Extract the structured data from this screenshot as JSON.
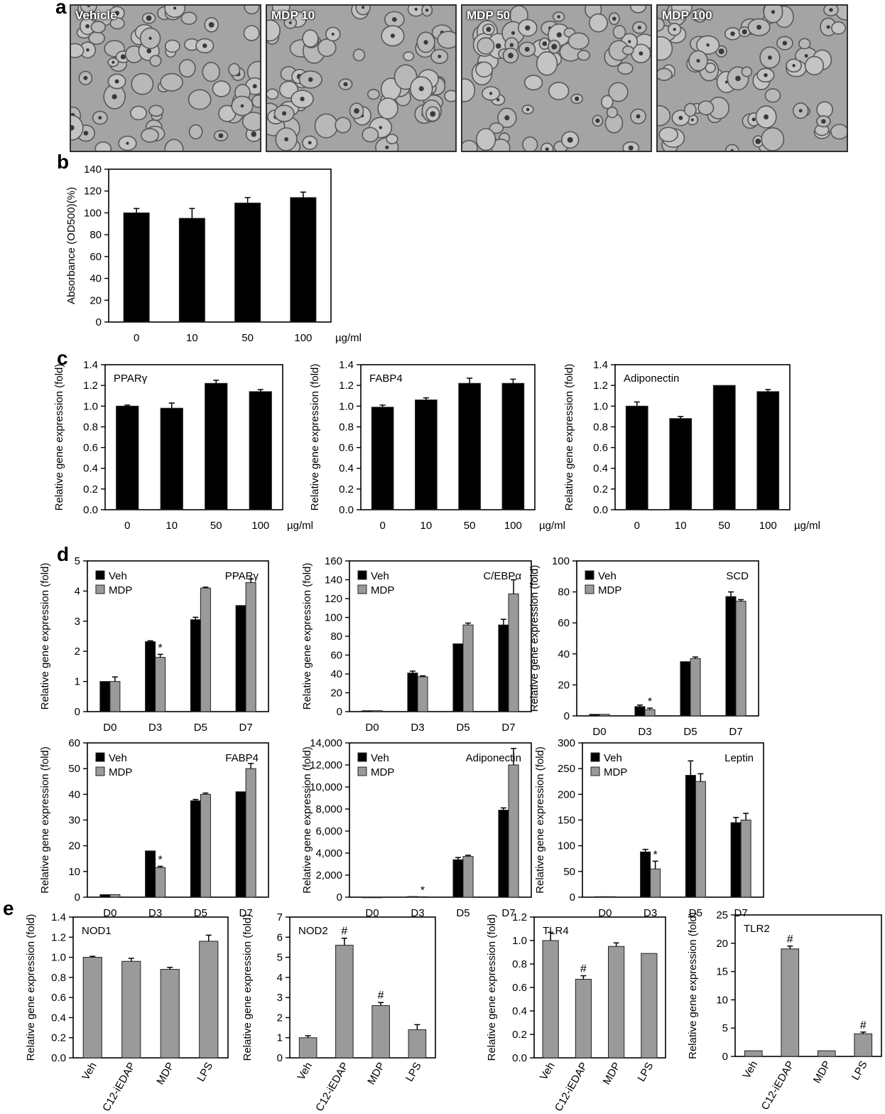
{
  "panels": {
    "a": "a",
    "b": "b",
    "c": "c",
    "d": "d",
    "e": "e"
  },
  "micrographs": [
    {
      "label": "Vehicle"
    },
    {
      "label": "MDP 10"
    },
    {
      "label": "MDP 50"
    },
    {
      "label": "MDP 100"
    }
  ],
  "chart_data": [
    {
      "id": "b",
      "type": "bar",
      "title": "",
      "categories": [
        "0",
        "10",
        "50",
        "100"
      ],
      "unit": "µg/ml",
      "ylabel": "Absorbance (OD500)(%)",
      "ylim": [
        0,
        140
      ],
      "yticks": [
        "0",
        "20",
        "40",
        "60",
        "80",
        "100",
        "120",
        "140"
      ],
      "series": [
        {
          "values": [
            100,
            95,
            109,
            114
          ],
          "errors": [
            4,
            9,
            5,
            5
          ]
        }
      ]
    },
    {
      "id": "c1",
      "type": "bar",
      "title": "PPARγ",
      "categories": [
        "0",
        "10",
        "50",
        "100"
      ],
      "unit": "µg/ml",
      "ylabel": "Relative gene expression (fold)",
      "ylim": [
        0,
        1.4
      ],
      "yticks": [
        "0.0",
        "0.2",
        "0.4",
        "0.6",
        "0.8",
        "1.0",
        "1.2",
        "1.4"
      ],
      "series": [
        {
          "values": [
            1.0,
            0.98,
            1.22,
            1.14
          ],
          "errors": [
            0.01,
            0.05,
            0.03,
            0.02
          ]
        }
      ]
    },
    {
      "id": "c2",
      "type": "bar",
      "title": "FABP4",
      "categories": [
        "0",
        "10",
        "50",
        "100"
      ],
      "unit": "µg/ml",
      "ylabel": "Relative gene expression (fold)",
      "ylim": [
        0,
        1.4
      ],
      "yticks": [
        "0.0",
        "0.2",
        "0.4",
        "0.6",
        "0.8",
        "1.0",
        "1.2",
        "1.4"
      ],
      "series": [
        {
          "values": [
            0.99,
            1.06,
            1.22,
            1.22
          ],
          "errors": [
            0.02,
            0.02,
            0.05,
            0.04
          ]
        }
      ]
    },
    {
      "id": "c3",
      "type": "bar",
      "title": "Adiponectin",
      "categories": [
        "0",
        "10",
        "50",
        "100"
      ],
      "unit": "µg/ml",
      "ylabel": "Relative gene expression (fold)",
      "ylim": [
        0,
        1.4
      ],
      "yticks": [
        "0.0",
        "0.2",
        "0.4",
        "0.6",
        "0.8",
        "1.0",
        "1.2",
        "1.4"
      ],
      "series": [
        {
          "values": [
            1.0,
            0.88,
            1.2,
            1.14
          ],
          "errors": [
            0.04,
            0.02,
            0.0,
            0.02
          ]
        }
      ]
    },
    {
      "id": "d1",
      "type": "bar",
      "title": "PPARγ",
      "categories": [
        "D0",
        "D3",
        "D5",
        "D7"
      ],
      "unit": "",
      "ylabel": "Relative gene expression (fold)",
      "ylim": [
        0,
        5
      ],
      "yticks": [
        "0",
        "1",
        "2",
        "3",
        "4",
        "5"
      ],
      "legend": [
        "Veh",
        "MDP"
      ],
      "series": [
        {
          "name": "Veh",
          "values": [
            1.0,
            2.32,
            3.05,
            3.52
          ],
          "errors": [
            0.0,
            0.03,
            0.08,
            0.0
          ]
        },
        {
          "name": "MDP",
          "values": [
            1.0,
            1.8,
            4.1,
            4.28
          ],
          "errors": [
            0.15,
            0.1,
            0.03,
            0.12
          ]
        }
      ],
      "stars": [
        {
          "index": 1,
          "text": "*"
        }
      ]
    },
    {
      "id": "d2",
      "type": "bar",
      "title": "C/EBPα",
      "categories": [
        "D0",
        "D3",
        "D5",
        "D7"
      ],
      "unit": "",
      "ylabel": "Relative gene expression (fold)",
      "ylim": [
        0,
        160
      ],
      "yticks": [
        "0",
        "20",
        "40",
        "60",
        "80",
        "100",
        "120",
        "140",
        "160"
      ],
      "legend": [
        "Veh",
        "MDP"
      ],
      "series": [
        {
          "name": "Veh",
          "values": [
            1,
            41,
            72,
            92
          ],
          "errors": [
            0,
            2,
            0,
            6
          ]
        },
        {
          "name": "MDP",
          "values": [
            1,
            37,
            92,
            125
          ],
          "errors": [
            0,
            1,
            2,
            15
          ]
        }
      ],
      "stars": []
    },
    {
      "id": "d3",
      "type": "bar",
      "title": "SCD",
      "categories": [
        "D0",
        "D3",
        "D5",
        "D7"
      ],
      "unit": "",
      "ylabel": "Relative gene expression (fold)",
      "ylim": [
        0,
        100
      ],
      "yticks": [
        "0",
        "20",
        "40",
        "60",
        "80",
        "100"
      ],
      "legend": [
        "Veh",
        "MDP"
      ],
      "series": [
        {
          "name": "Veh",
          "values": [
            1,
            6,
            35,
            77
          ],
          "errors": [
            0,
            1,
            0,
            3
          ]
        },
        {
          "name": "MDP",
          "values": [
            1,
            4,
            37,
            74
          ],
          "errors": [
            0,
            1,
            1,
            1
          ]
        }
      ],
      "stars": [
        {
          "index": 1,
          "text": "*"
        }
      ]
    },
    {
      "id": "d4",
      "type": "bar",
      "title": "FABP4",
      "categories": [
        "D0",
        "D3",
        "D5",
        "D7"
      ],
      "unit": "",
      "ylabel": "Relative gene expression (fold)",
      "ylim": [
        0,
        60
      ],
      "yticks": [
        "0",
        "10",
        "20",
        "30",
        "40",
        "50",
        "60"
      ],
      "legend": [
        "Veh",
        "MDP"
      ],
      "series": [
        {
          "name": "Veh",
          "values": [
            1,
            18,
            37.5,
            41
          ],
          "errors": [
            0,
            0,
            0.5,
            0
          ]
        },
        {
          "name": "MDP",
          "values": [
            1,
            11.5,
            40,
            50
          ],
          "errors": [
            0,
            0.5,
            0.5,
            2
          ]
        }
      ],
      "stars": [
        {
          "index": 1,
          "text": "*"
        }
      ]
    },
    {
      "id": "d5",
      "type": "bar",
      "title": "Adiponectin",
      "categories": [
        "D0",
        "D3",
        "D5",
        "D7"
      ],
      "unit": "",
      "ylabel": "Relative gene expression (fold)",
      "ylim": [
        0,
        14000
      ],
      "yticks": [
        "0",
        "2,000",
        "4,000",
        "6,000",
        "8,000",
        "10,000",
        "12,000",
        "14,000"
      ],
      "legend": [
        "Veh",
        "MDP"
      ],
      "series": [
        {
          "name": "Veh",
          "values": [
            1,
            60,
            3400,
            7900
          ],
          "errors": [
            0,
            0,
            200,
            200
          ]
        },
        {
          "name": "MDP",
          "values": [
            1,
            40,
            3700,
            12000
          ],
          "errors": [
            0,
            0,
            100,
            1500
          ]
        }
      ],
      "stars": [
        {
          "index": 1,
          "text": "*"
        }
      ]
    },
    {
      "id": "d6",
      "type": "bar",
      "title": "Leptin",
      "categories": [
        "D0",
        "D3",
        "D5",
        "D7"
      ],
      "unit": "",
      "ylabel": "Relative gene expression (fold)",
      "ylim": [
        0,
        300
      ],
      "yticks": [
        "0",
        "50",
        "100",
        "150",
        "200",
        "250",
        "300"
      ],
      "legend": [
        "Veh",
        "MDP"
      ],
      "series": [
        {
          "name": "Veh",
          "values": [
            1,
            88,
            237,
            145
          ],
          "errors": [
            0,
            5,
            28,
            10
          ]
        },
        {
          "name": "MDP",
          "values": [
            1,
            55,
            225,
            150
          ],
          "errors": [
            0,
            15,
            15,
            13
          ]
        }
      ],
      "stars": [
        {
          "index": 1,
          "text": "*"
        }
      ]
    },
    {
      "id": "e1",
      "type": "bar",
      "title": "NOD1",
      "categories": [
        "Veh",
        "C12-iEDAP",
        "MDP",
        "LPS"
      ],
      "ylabel": "Relative gene expression (fold)",
      "ylim": [
        0,
        1.4
      ],
      "yticks": [
        "0.0",
        "0.2",
        "0.4",
        "0.6",
        "0.8",
        "1.0",
        "1.2",
        "1.4"
      ],
      "series": [
        {
          "values": [
            1.0,
            0.96,
            0.88,
            1.16
          ],
          "errors": [
            0.01,
            0.03,
            0.02,
            0.06
          ]
        }
      ],
      "marks": []
    },
    {
      "id": "e2",
      "type": "bar",
      "title": "NOD2",
      "categories": [
        "Veh",
        "C12-iEDAP",
        "MDP",
        "LPS"
      ],
      "ylabel": "Relative gene expression (fold)",
      "ylim": [
        0,
        7
      ],
      "yticks": [
        "0",
        "1",
        "2",
        "3",
        "4",
        "5",
        "6",
        "7"
      ],
      "series": [
        {
          "values": [
            1.0,
            5.6,
            2.6,
            1.4
          ],
          "errors": [
            0.1,
            0.35,
            0.15,
            0.25
          ]
        }
      ],
      "marks": [
        {
          "index": 1,
          "text": "#"
        },
        {
          "index": 2,
          "text": "#"
        }
      ]
    },
    {
      "id": "e3",
      "type": "bar",
      "title": "TLR4",
      "categories": [
        "Veh",
        "C12-iEDAP",
        "MDP",
        "LPS"
      ],
      "ylabel": "Relative gene expression (fold)",
      "ylim": [
        0,
        1.2
      ],
      "yticks": [
        "0.0",
        "0.2",
        "0.4",
        "0.6",
        "0.8",
        "1.0",
        "1.2"
      ],
      "series": [
        {
          "values": [
            1.0,
            0.67,
            0.95,
            0.89
          ],
          "errors": [
            0.07,
            0.03,
            0.03,
            0.0
          ]
        }
      ],
      "marks": [
        {
          "index": 1,
          "text": "#"
        }
      ]
    },
    {
      "id": "e4",
      "type": "bar",
      "title": "TLR2",
      "categories": [
        "Veh",
        "C12-iEDAP",
        "MDP",
        "LPS"
      ],
      "ylabel": "Relative gene expression (fold)",
      "ylim": [
        0,
        25
      ],
      "yticks": [
        "0",
        "5",
        "10",
        "15",
        "20",
        "25"
      ],
      "series": [
        {
          "values": [
            1.0,
            19,
            1.0,
            4.0
          ],
          "errors": [
            0.0,
            0.5,
            0.0,
            0.3
          ]
        }
      ],
      "marks": [
        {
          "index": 1,
          "text": "#"
        },
        {
          "index": 3,
          "text": "#"
        }
      ]
    }
  ]
}
